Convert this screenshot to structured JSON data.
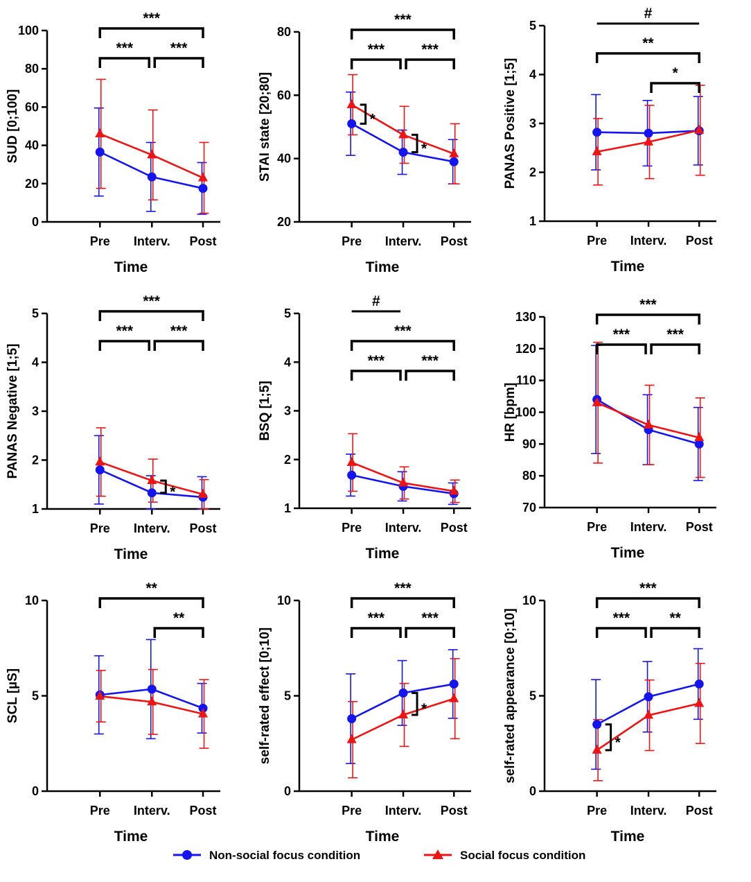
{
  "legend": {
    "non_social": "Non-social focus condition",
    "social": "Social focus condition"
  },
  "colors": {
    "non_social": "#1414ee",
    "social": "#ee1414",
    "axis": "#000000"
  },
  "chart_data": [
    {
      "id": "sud",
      "type": "line",
      "ylabel": "SUD [0;100]",
      "xlabel": "Time",
      "categories": [
        "Pre",
        "Interv.",
        "Post"
      ],
      "ylim": [
        0,
        100
      ],
      "yticks": [
        0,
        20,
        40,
        60,
        80,
        100
      ],
      "series": [
        {
          "name": "Non-social focus condition",
          "values": [
            36.5,
            23.5,
            17.5
          ],
          "err": [
            23,
            18,
            13.5
          ]
        },
        {
          "name": "Social focus condition",
          "values": [
            46,
            35,
            23
          ],
          "err": [
            28.5,
            23.5,
            18.5
          ]
        }
      ],
      "brackets": [
        {
          "from": 0,
          "to": 2,
          "level": 0,
          "label": "***"
        },
        {
          "from": 0,
          "to": 1,
          "level": 1,
          "label": "***"
        },
        {
          "from": 1,
          "to": 2,
          "level": 1,
          "label": "***"
        }
      ],
      "group_sigs": []
    },
    {
      "id": "stai",
      "type": "line",
      "ylabel": "STAI state [20;80]",
      "xlabel": "Time",
      "categories": [
        "Pre",
        "Interv.",
        "Post"
      ],
      "ylim": [
        20,
        80
      ],
      "yticks": [
        20,
        40,
        60,
        80
      ],
      "series": [
        {
          "name": "Non-social focus condition",
          "values": [
            51,
            42,
            39
          ],
          "err": [
            10,
            7,
            7
          ]
        },
        {
          "name": "Social focus condition",
          "values": [
            57,
            47.5,
            41.5
          ],
          "err": [
            9.5,
            9,
            9.5
          ]
        }
      ],
      "brackets": [
        {
          "from": 0,
          "to": 2,
          "level": 0,
          "label": "***"
        },
        {
          "from": 0,
          "to": 1,
          "level": 1,
          "label": "***"
        },
        {
          "from": 1,
          "to": 2,
          "level": 1,
          "label": "***"
        }
      ],
      "group_sigs": [
        {
          "at": 0,
          "label": "*"
        },
        {
          "at": 1,
          "label": "*"
        }
      ]
    },
    {
      "id": "panas_pos",
      "type": "line",
      "ylabel": "PANAS Positive [1;5]",
      "xlabel": "Time",
      "categories": [
        "Pre",
        "Interv.",
        "Post"
      ],
      "ylim": [
        1,
        5
      ],
      "yticks": [
        1,
        2,
        3,
        4,
        5
      ],
      "series": [
        {
          "name": "Non-social focus condition",
          "values": [
            2.82,
            2.8,
            2.85
          ],
          "err": [
            0.77,
            0.67,
            0.7
          ]
        },
        {
          "name": "Social focus condition",
          "values": [
            2.42,
            2.62,
            2.86
          ],
          "err": [
            0.68,
            0.75,
            0.92
          ]
        }
      ],
      "brackets": [
        {
          "from": 0,
          "to": 2,
          "level": 0,
          "label": "#",
          "nodrop": true
        },
        {
          "from": 0,
          "to": 2,
          "level": 1,
          "label": "**"
        },
        {
          "from": 1,
          "to": 2,
          "level": 2,
          "label": "*"
        }
      ],
      "group_sigs": []
    },
    {
      "id": "panas_neg",
      "type": "line",
      "ylabel": "PANAS Negative [1;5]",
      "xlabel": "Time",
      "categories": [
        "Pre",
        "Interv.",
        "Post"
      ],
      "ylim": [
        1,
        5
      ],
      "yticks": [
        1,
        2,
        3,
        4,
        5
      ],
      "series": [
        {
          "name": "Non-social focus condition",
          "values": [
            1.8,
            1.33,
            1.24
          ],
          "err": [
            0.7,
            0.35,
            0.42
          ]
        },
        {
          "name": "Social focus condition",
          "values": [
            1.96,
            1.58,
            1.3
          ],
          "err": [
            0.7,
            0.44,
            0.3
          ]
        }
      ],
      "brackets": [
        {
          "from": 0,
          "to": 2,
          "level": 0,
          "label": "***"
        },
        {
          "from": 0,
          "to": 1,
          "level": 1,
          "label": "***"
        },
        {
          "from": 1,
          "to": 2,
          "level": 1,
          "label": "***"
        }
      ],
      "group_sigs": [
        {
          "at": 1,
          "label": "*"
        }
      ]
    },
    {
      "id": "bsq",
      "type": "line",
      "ylabel": "BSQ [1;5]",
      "xlabel": "Time",
      "categories": [
        "Pre",
        "Interv.",
        "Post"
      ],
      "ylim": [
        1,
        5
      ],
      "yticks": [
        1,
        2,
        3,
        4,
        5
      ],
      "series": [
        {
          "name": "Non-social focus condition",
          "values": [
            1.68,
            1.45,
            1.3
          ],
          "err": [
            0.43,
            0.3,
            0.22
          ]
        },
        {
          "name": "Social focus condition",
          "values": [
            1.94,
            1.52,
            1.35
          ],
          "err": [
            0.59,
            0.33,
            0.23
          ]
        }
      ],
      "brackets": [
        {
          "from": 0,
          "to": 1,
          "level": 0,
          "label": "#",
          "nodrop": true
        },
        {
          "from": 0,
          "to": 2,
          "level": 1,
          "label": "***"
        },
        {
          "from": 0,
          "to": 1,
          "level": 2,
          "label": "***"
        },
        {
          "from": 1,
          "to": 2,
          "level": 2,
          "label": "***"
        }
      ],
      "group_sigs": []
    },
    {
      "id": "hr",
      "type": "line",
      "ylabel": "HR [bpm]",
      "xlabel": "Time",
      "categories": [
        "Pre",
        "Interv.",
        "Post"
      ],
      "ylim": [
        70,
        130
      ],
      "yticks": [
        70,
        80,
        90,
        100,
        110,
        120,
        130
      ],
      "series": [
        {
          "name": "Non-social focus condition",
          "values": [
            104,
            94.5,
            90
          ],
          "err": [
            17,
            11,
            11.5
          ]
        },
        {
          "name": "Social focus condition",
          "values": [
            103,
            96,
            92
          ],
          "err": [
            19,
            12.5,
            12.5
          ]
        }
      ],
      "brackets": [
        {
          "from": 0,
          "to": 2,
          "level": 0,
          "label": "***"
        },
        {
          "from": 0,
          "to": 1,
          "level": 1,
          "label": "***"
        },
        {
          "from": 1,
          "to": 2,
          "level": 1,
          "label": "***"
        }
      ],
      "group_sigs": []
    },
    {
      "id": "scl",
      "type": "line",
      "ylabel": "SCL [µS]",
      "xlabel": "Time",
      "categories": [
        "Pre",
        "Interv.",
        "Post"
      ],
      "ylim": [
        0,
        10
      ],
      "yticks": [
        0,
        5,
        10
      ],
      "series": [
        {
          "name": "Non-social focus condition",
          "values": [
            5.05,
            5.35,
            4.35
          ],
          "err": [
            2.05,
            2.6,
            1.3
          ]
        },
        {
          "name": "Social focus condition",
          "values": [
            4.98,
            4.68,
            4.05
          ],
          "err": [
            1.35,
            1.7,
            1.8
          ]
        }
      ],
      "brackets": [
        {
          "from": 0,
          "to": 2,
          "level": 0,
          "label": "**"
        },
        {
          "from": 1,
          "to": 2,
          "level": 1,
          "label": "**"
        }
      ],
      "group_sigs": []
    },
    {
      "id": "effect",
      "type": "line",
      "ylabel": "self-rated effect [0;10]",
      "xlabel": "Time",
      "categories": [
        "Pre",
        "Interv.",
        "Post"
      ],
      "ylim": [
        0,
        10
      ],
      "yticks": [
        0,
        5,
        10
      ],
      "series": [
        {
          "name": "Non-social focus condition",
          "values": [
            3.8,
            5.15,
            5.62
          ],
          "err": [
            2.35,
            1.7,
            1.8
          ]
        },
        {
          "name": "Social focus condition",
          "values": [
            2.7,
            4.0,
            4.85
          ],
          "err": [
            2.0,
            1.65,
            2.1
          ]
        }
      ],
      "brackets": [
        {
          "from": 0,
          "to": 2,
          "level": 0,
          "label": "***"
        },
        {
          "from": 0,
          "to": 1,
          "level": 1,
          "label": "***"
        },
        {
          "from": 1,
          "to": 2,
          "level": 1,
          "label": "***"
        }
      ],
      "group_sigs": [
        {
          "at": 1,
          "label": "*"
        }
      ]
    },
    {
      "id": "appearance",
      "type": "line",
      "ylabel": "self-rated appearance [0;10]",
      "xlabel": "Time",
      "categories": [
        "Pre",
        "Interv.",
        "Post"
      ],
      "ylim": [
        0,
        10
      ],
      "yticks": [
        0,
        5,
        10
      ],
      "series": [
        {
          "name": "Non-social focus condition",
          "values": [
            3.5,
            4.95,
            5.62
          ],
          "err": [
            2.35,
            1.85,
            1.85
          ]
        },
        {
          "name": "Social focus condition",
          "values": [
            2.15,
            3.98,
            4.6
          ],
          "err": [
            1.6,
            1.85,
            2.1
          ]
        }
      ],
      "brackets": [
        {
          "from": 0,
          "to": 2,
          "level": 0,
          "label": "***"
        },
        {
          "from": 0,
          "to": 1,
          "level": 1,
          "label": "***"
        },
        {
          "from": 1,
          "to": 2,
          "level": 1,
          "label": "**"
        }
      ],
      "group_sigs": [
        {
          "at": 0,
          "label": "*"
        }
      ]
    }
  ]
}
